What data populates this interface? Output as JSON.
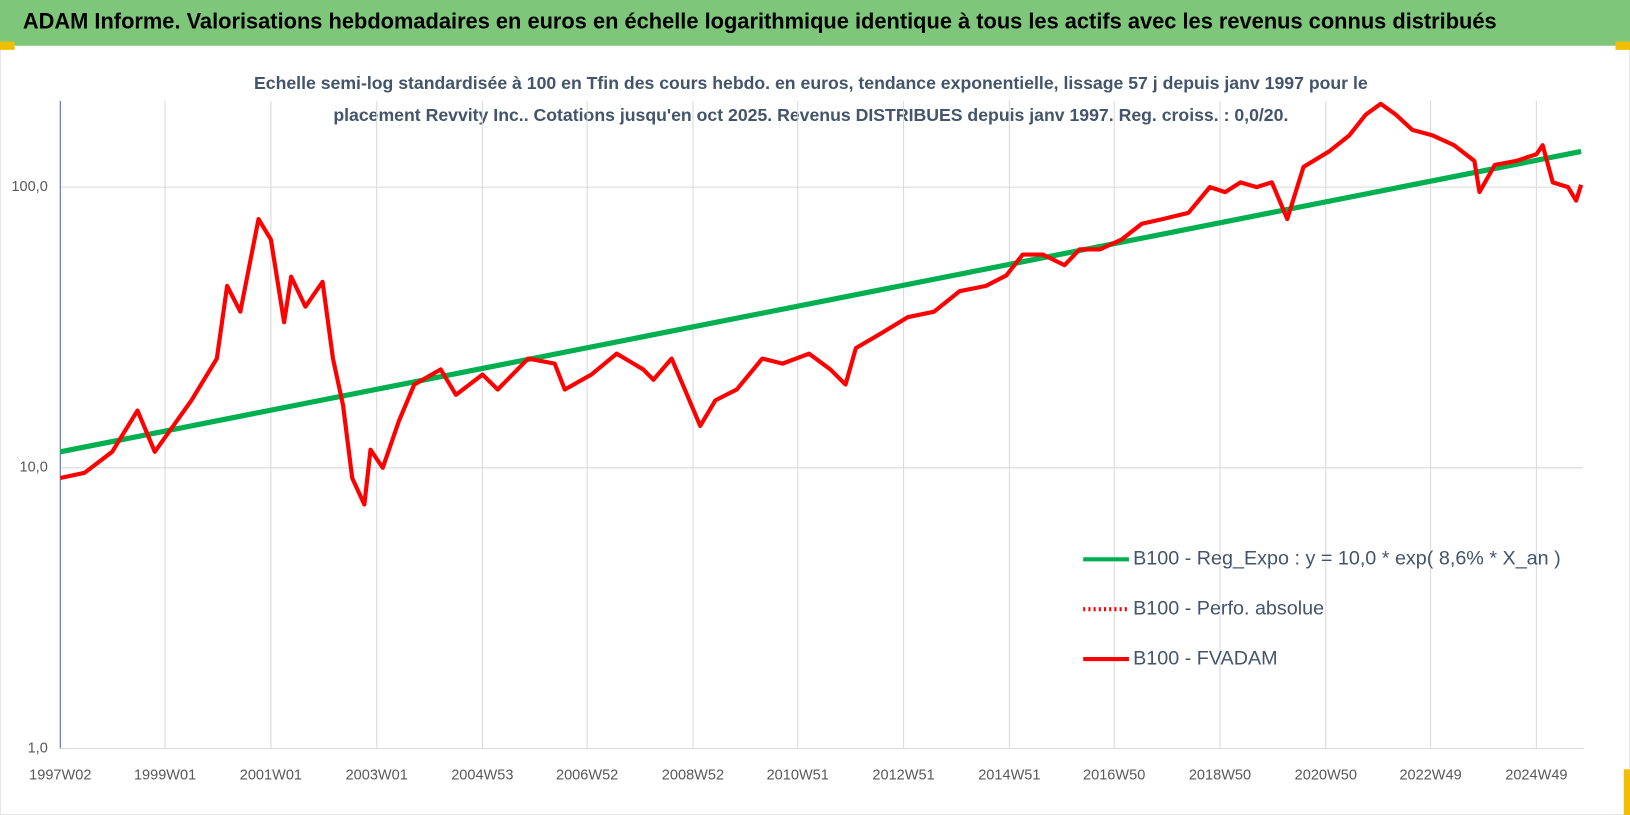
{
  "chart_data": {
    "type": "line",
    "title": "ADAM Informe. Valorisations hebdomadaires en euros en échelle logarithmique identique à tous les actifs avec les revenus connus distribués",
    "subtitle": [
      "Echelle semi-log standardisée à 100 en Tfin des cours hebdo. en euros, tendance exponentielle, lissage 57 j depuis janv 1997 pour le",
      "placement Revvity Inc.. Cotations jusqu'en oct 2025. Revenus DISTRIBUES depuis janv 1997. Reg. croiss. : 0,0/20."
    ],
    "log_scale_y": true,
    "grid": true,
    "legend": "lower right",
    "xlim": [
      "1997W02",
      "2025W43"
    ],
    "xticks": [
      "1997W02",
      "1999W01",
      "2001W01",
      "2003W01",
      "2004W53",
      "2006W52",
      "2008W52",
      "2010W51",
      "2012W51",
      "2014W51",
      "2016W50",
      "2018W50",
      "2020W50",
      "2022W49",
      "2024W49"
    ],
    "ylim": [
      1,
      203
    ],
    "yticks": [
      {
        "value": 1,
        "label": "1,0"
      },
      {
        "value": 10,
        "label": "10,0"
      },
      {
        "value": 100,
        "label": "100,0"
      }
    ],
    "series": [
      {
        "name": "B100 - Reg_Expo : y = 10,0 * exp( 8,6% *  X_an )",
        "color": "#00b050",
        "style": "solid",
        "x": [
          "1997W02",
          "2025W41"
        ],
        "values": [
          11.4,
          134
        ]
      },
      {
        "name": "B100 - Perfo. absolue",
        "color": "#ff0000",
        "style": "dotted",
        "x": [],
        "values": []
      },
      {
        "name": "B100 - FVADAM",
        "color": "#ff0000",
        "style": "solid",
        "x": [
          "1997W02",
          "1997W26",
          "1998W01",
          "1998W26",
          "1998W43",
          "1999W27",
          "1999W52",
          "2000W10",
          "2000W23",
          "2000W41",
          "2001W01",
          "2001W14",
          "2001W21",
          "2001W35",
          "2001W52",
          "2002W10",
          "2002W20",
          "2002W29",
          "2002W41",
          "2002W47",
          "2003W07",
          "2003W23",
          "2003W38",
          "2004W12",
          "2004W27",
          "2005W01",
          "2005W16",
          "2005W46",
          "2006W20",
          "2006W30",
          "2007W04",
          "2007W29",
          "2008W03",
          "2008W13",
          "2008W31",
          "2008W44",
          "2009W07",
          "2009W22",
          "2009W43",
          "2010W16",
          "2010W36",
          "2011W10",
          "2011W31",
          "2011W46",
          "2012W04",
          "2012W30",
          "2013W03",
          "2013W29",
          "2014W02",
          "2014W28",
          "2014W48",
          "2015W12",
          "2015W32",
          "2016W01",
          "2016W16",
          "2016W36",
          "2017W05",
          "2017W25",
          "2017W46",
          "2018W19",
          "2018W40",
          "2019W03",
          "2019W18",
          "2019W34",
          "2019W49",
          "2020W12",
          "2020W28",
          "2021W01",
          "2021W21",
          "2021W37",
          "2021W52",
          "2022W15",
          "2022W31",
          "2022W51",
          "2023W20",
          "2023W40",
          "2023W45",
          "2024W08",
          "2024W29",
          "2024W49",
          "2025W03",
          "2025W13",
          "2025W28",
          "2025W36",
          "2025W41"
        ],
        "values": [
          9.2,
          9.6,
          11.4,
          16,
          11.4,
          17.4,
          24.5,
          44.5,
          36,
          77,
          65,
          33,
          48,
          37.5,
          46,
          24.5,
          16.7,
          9.2,
          7.4,
          11.6,
          10,
          14.7,
          19.8,
          22.4,
          18.2,
          21.5,
          19,
          24.5,
          23.5,
          19,
          21.5,
          25.5,
          22.4,
          20.6,
          24.5,
          19,
          14.1,
          17.4,
          19,
          24.5,
          23.5,
          25.5,
          22.4,
          19.8,
          26.7,
          30.3,
          34.4,
          36,
          42.6,
          44.5,
          48.5,
          57.5,
          57.5,
          52.7,
          60,
          60,
          65,
          74,
          77,
          81,
          100,
          96,
          104,
          100,
          104,
          77,
          118,
          134,
          153,
          181,
          198,
          181,
          160,
          153,
          141,
          124,
          96,
          120,
          124,
          131,
          141,
          104,
          100,
          89.5,
          102
        ]
      }
    ]
  }
}
